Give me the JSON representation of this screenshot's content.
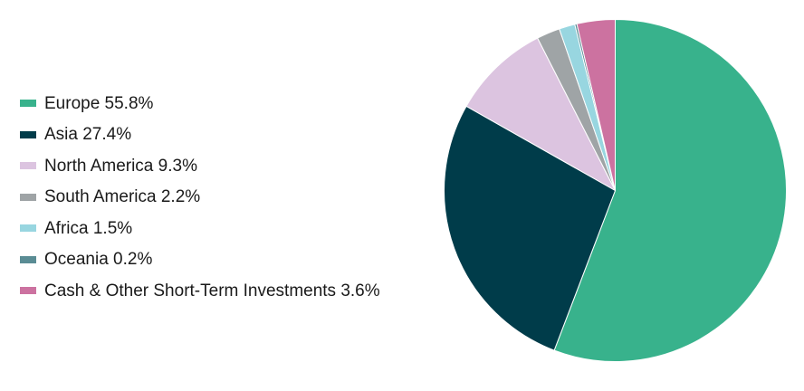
{
  "chart_data": {
    "type": "pie",
    "title": "",
    "slices": [
      {
        "label": "Europe",
        "value": 55.8,
        "display": "Europe 55.8%",
        "color": "#38b28c"
      },
      {
        "label": "Asia",
        "value": 27.4,
        "display": "Asia 27.4%",
        "color": "#003c4a"
      },
      {
        "label": "North America",
        "value": 9.3,
        "display": "North America 9.3%",
        "color": "#dcc4e0"
      },
      {
        "label": "South America",
        "value": 2.2,
        "display": "South America 2.2%",
        "color": "#9fa4a6"
      },
      {
        "label": "Africa",
        "value": 1.5,
        "display": "Africa 1.5%",
        "color": "#98d6e0"
      },
      {
        "label": "Oceania",
        "value": 0.2,
        "display": "Oceania 0.2%",
        "color": "#5a8c94"
      },
      {
        "label": "Cash & Other Short-Term Investments",
        "value": 3.6,
        "display": "Cash & Other Short-Term Investments 3.6%",
        "color": "#cc72a0"
      }
    ],
    "start_angle": "12 o'clock",
    "direction": "clockwise",
    "legend_position": "left"
  }
}
